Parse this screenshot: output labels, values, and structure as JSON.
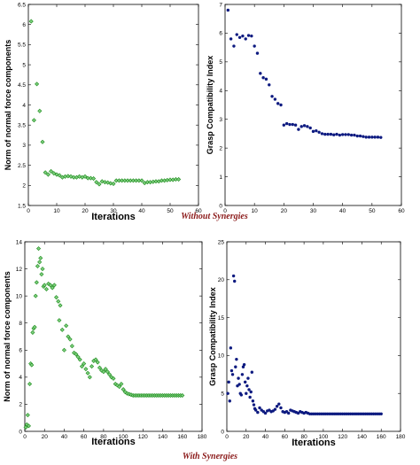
{
  "captions": {
    "top": "Without Synergies",
    "bottom": "With Synergies"
  },
  "chart_data": [
    {
      "type": "scatter",
      "title": "",
      "xlabel": "Iterations",
      "ylabel": "Norm of normal force components",
      "xlim": [
        0,
        60
      ],
      "ylim": [
        1.5,
        6.5
      ],
      "xticks": [
        0,
        10,
        20,
        30,
        40,
        50,
        60
      ],
      "yticks": [
        1.5,
        2,
        2.5,
        3,
        3.5,
        4,
        4.5,
        5,
        5.5,
        6,
        6.5
      ],
      "grid": false,
      "color": "#1a8a1a",
      "marker": "diamond",
      "x": [
        1,
        2,
        3,
        4,
        5,
        6,
        7,
        8,
        9,
        10,
        11,
        12,
        13,
        14,
        15,
        16,
        17,
        18,
        19,
        20,
        21,
        22,
        23,
        24,
        25,
        26,
        27,
        28,
        29,
        30,
        31,
        32,
        33,
        34,
        35,
        36,
        37,
        38,
        39,
        40,
        41,
        42,
        43,
        44,
        45,
        46,
        47,
        48,
        49,
        50,
        51,
        52,
        53
      ],
      "y": [
        6.08,
        3.62,
        4.52,
        3.85,
        3.08,
        2.32,
        2.27,
        2.35,
        2.3,
        2.27,
        2.25,
        2.2,
        2.22,
        2.23,
        2.22,
        2.2,
        2.2,
        2.22,
        2.2,
        2.22,
        2.18,
        2.18,
        2.17,
        2.08,
        2.03,
        2.1,
        2.08,
        2.07,
        2.05,
        2.04,
        2.12,
        2.12,
        2.12,
        2.12,
        2.12,
        2.12,
        2.12,
        2.12,
        2.12,
        2.12,
        2.06,
        2.08,
        2.08,
        2.09,
        2.1,
        2.1,
        2.12,
        2.12,
        2.13,
        2.14,
        2.14,
        2.15,
        2.15
      ]
    },
    {
      "type": "scatter",
      "title": "",
      "xlabel": "",
      "ylabel": "Grasp Compatibility Index",
      "xlim": [
        0,
        60
      ],
      "ylim": [
        0,
        7
      ],
      "xticks": [
        0,
        10,
        20,
        30,
        40,
        50,
        60
      ],
      "yticks": [
        0,
        1,
        2,
        3,
        4,
        5,
        6,
        7
      ],
      "grid": false,
      "color": "#0d1a80",
      "marker": "circle",
      "x": [
        1,
        2,
        3,
        4,
        5,
        6,
        7,
        8,
        9,
        10,
        11,
        12,
        13,
        14,
        15,
        16,
        17,
        18,
        19,
        20,
        21,
        22,
        23,
        24,
        25,
        26,
        27,
        28,
        29,
        30,
        31,
        32,
        33,
        34,
        35,
        36,
        37,
        38,
        39,
        40,
        41,
        42,
        43,
        44,
        45,
        46,
        47,
        48,
        49,
        50,
        51,
        52,
        53
      ],
      "y": [
        6.8,
        5.8,
        5.55,
        5.95,
        5.85,
        5.9,
        5.8,
        5.92,
        5.9,
        5.55,
        5.3,
        4.6,
        4.45,
        4.4,
        4.2,
        3.8,
        3.7,
        3.55,
        3.5,
        2.8,
        2.85,
        2.82,
        2.82,
        2.8,
        2.65,
        2.75,
        2.78,
        2.75,
        2.7,
        2.58,
        2.6,
        2.55,
        2.5,
        2.48,
        2.48,
        2.48,
        2.46,
        2.48,
        2.45,
        2.47,
        2.47,
        2.47,
        2.45,
        2.45,
        2.42,
        2.42,
        2.4,
        2.38,
        2.38,
        2.38,
        2.38,
        2.38,
        2.37
      ]
    },
    {
      "type": "scatter",
      "title": "",
      "xlabel": "Iterations",
      "ylabel": "Norm of normal force components",
      "xlim": [
        0,
        180
      ],
      "ylim": [
        0,
        14
      ],
      "xticks": [
        0,
        20,
        40,
        60,
        80,
        100,
        120,
        140,
        160,
        180
      ],
      "yticks": [
        0,
        2,
        4,
        6,
        8,
        10,
        12,
        14
      ],
      "grid": false,
      "color": "#1a8a1a",
      "marker": "diamond",
      "x": [
        1,
        2,
        3,
        4,
        5,
        6,
        7,
        8,
        9,
        10,
        11,
        12,
        13,
        14,
        15,
        16,
        17,
        18,
        19,
        20,
        22,
        24,
        26,
        28,
        30,
        32,
        34,
        35,
        36,
        38,
        40,
        42,
        44,
        46,
        48,
        50,
        52,
        54,
        56,
        58,
        60,
        62,
        64,
        66,
        68,
        70,
        72,
        74,
        76,
        78,
        80,
        82,
        84,
        86,
        88,
        90,
        92,
        94,
        96,
        98,
        100,
        102,
        104,
        106,
        108,
        110,
        112,
        114,
        116,
        118,
        120,
        122,
        124,
        126,
        128,
        130,
        132,
        134,
        136,
        138,
        140,
        142,
        144,
        146,
        148,
        150,
        152,
        154,
        156,
        158,
        160
      ],
      "y": [
        0.3,
        0.5,
        1.2,
        0.4,
        3.5,
        5.0,
        4.9,
        7.3,
        7.6,
        7.7,
        10.0,
        11.0,
        12.2,
        13.5,
        12.5,
        12.8,
        11.6,
        12.0,
        10.7,
        10.8,
        10.5,
        10.9,
        10.8,
        10.6,
        10.8,
        9.9,
        9.6,
        8.2,
        9.3,
        7.5,
        6.0,
        7.8,
        7.0,
        6.8,
        6.3,
        5.8,
        5.7,
        5.5,
        5.3,
        4.8,
        5.0,
        4.6,
        4.3,
        4.0,
        4.8,
        5.2,
        5.3,
        5.1,
        4.7,
        4.5,
        4.4,
        4.6,
        4.4,
        4.2,
        4.0,
        3.9,
        3.5,
        3.4,
        3.3,
        3.5,
        3.1,
        2.9,
        2.8,
        2.75,
        2.7,
        2.65,
        2.65,
        2.65,
        2.65,
        2.65,
        2.65,
        2.65,
        2.65,
        2.65,
        2.65,
        2.65,
        2.65,
        2.65,
        2.65,
        2.65,
        2.65,
        2.65,
        2.65,
        2.65,
        2.65,
        2.65,
        2.65,
        2.65,
        2.65,
        2.65,
        2.65
      ]
    },
    {
      "type": "scatter",
      "title": "",
      "xlabel": "Iterations",
      "ylabel": "Grasp Compatibility Index",
      "xlim": [
        0,
        180
      ],
      "ylim": [
        0,
        25
      ],
      "xticks": [
        0,
        20,
        40,
        60,
        80,
        100,
        120,
        140,
        160,
        180
      ],
      "yticks": [
        0,
        5,
        10,
        15,
        20,
        25
      ],
      "grid": false,
      "color": "#0d1a80",
      "marker": "circle",
      "x": [
        1,
        2,
        3,
        4,
        5,
        6,
        7,
        8,
        9,
        10,
        11,
        12,
        13,
        14,
        15,
        16,
        17,
        18,
        19,
        20,
        21,
        22,
        23,
        24,
        25,
        26,
        27,
        28,
        29,
        30,
        32,
        34,
        36,
        38,
        40,
        42,
        44,
        46,
        48,
        50,
        52,
        54,
        56,
        58,
        60,
        62,
        64,
        66,
        68,
        70,
        72,
        74,
        76,
        78,
        80,
        82,
        84,
        86,
        88,
        90,
        92,
        94,
        96,
        98,
        100,
        102,
        104,
        106,
        108,
        110,
        112,
        114,
        116,
        118,
        120,
        122,
        124,
        126,
        128,
        130,
        132,
        134,
        136,
        138,
        140,
        142,
        144,
        146,
        148,
        150,
        152,
        154,
        156,
        158,
        160
      ],
      "y": [
        5.0,
        6.5,
        4.0,
        11.0,
        8.0,
        7.5,
        20.5,
        19.8,
        8.5,
        9.5,
        6.0,
        7.0,
        6.2,
        5.0,
        4.8,
        7.5,
        8.5,
        8.8,
        6.5,
        5.0,
        6.0,
        7.0,
        5.5,
        4.5,
        5.2,
        7.8,
        4.0,
        3.5,
        3.0,
        2.8,
        2.5,
        3.1,
        2.8,
        2.6,
        2.4,
        2.7,
        2.8,
        2.6,
        2.7,
        2.9,
        3.3,
        3.6,
        3.1,
        2.6,
        2.5,
        2.6,
        2.4,
        2.8,
        2.7,
        2.6,
        2.5,
        2.4,
        2.6,
        2.5,
        2.4,
        2.5,
        2.4,
        2.3,
        2.3,
        2.3,
        2.3,
        2.3,
        2.3,
        2.3,
        2.3,
        2.3,
        2.3,
        2.3,
        2.3,
        2.3,
        2.3,
        2.3,
        2.3,
        2.3,
        2.3,
        2.3,
        2.3,
        2.3,
        2.3,
        2.3,
        2.3,
        2.3,
        2.3,
        2.3,
        2.3,
        2.3,
        2.3,
        2.3,
        2.3,
        2.3,
        2.3,
        2.3,
        2.3,
        2.3,
        2.3
      ]
    }
  ]
}
